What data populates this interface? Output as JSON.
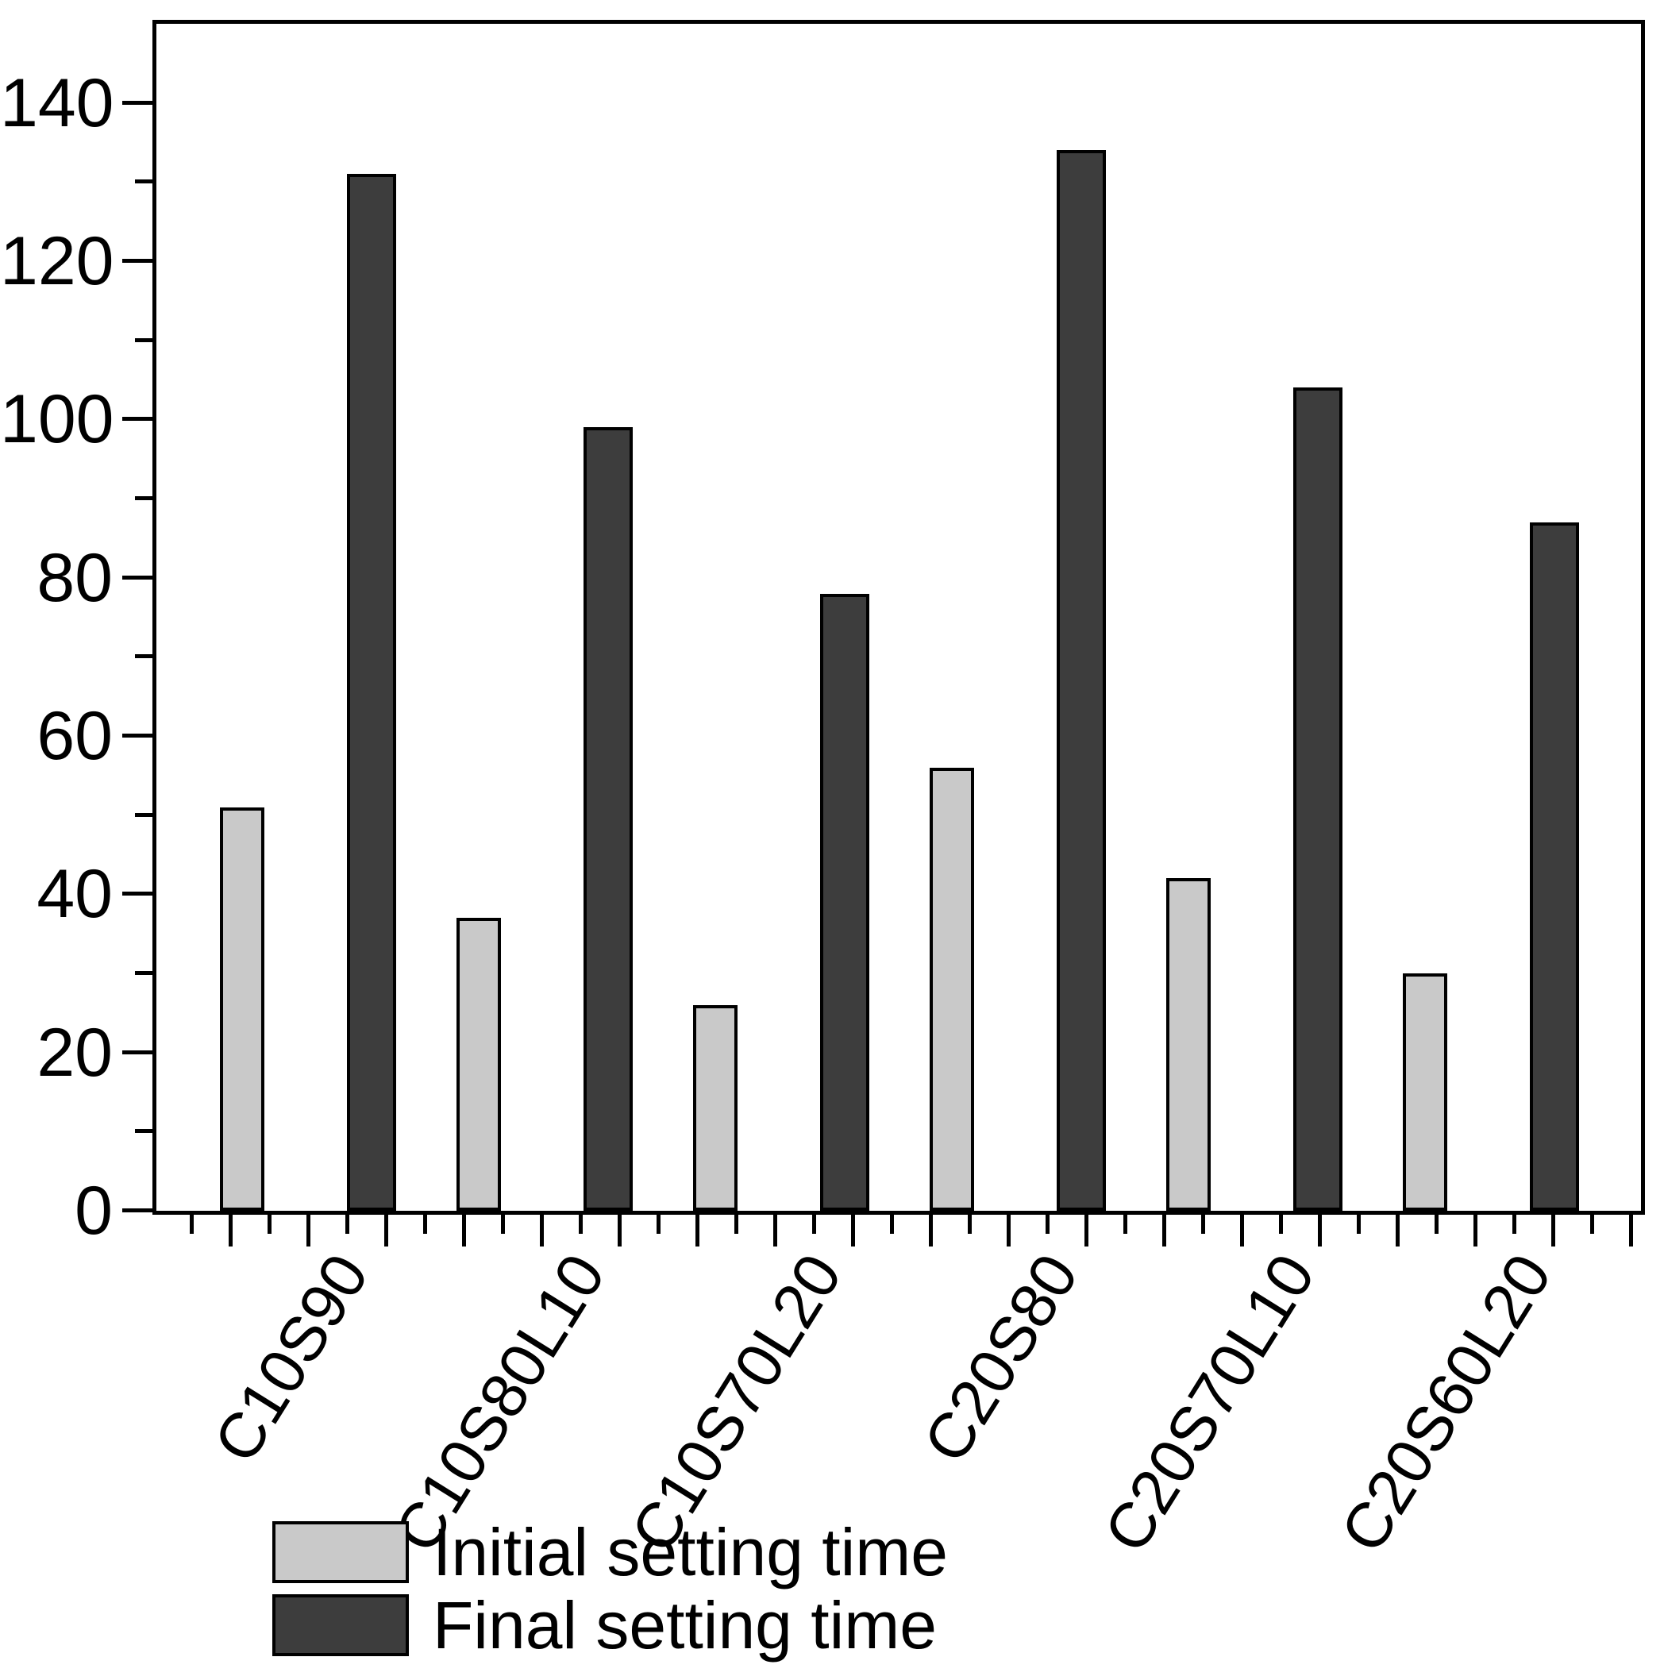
{
  "chart_data": {
    "type": "bar",
    "title": "",
    "xlabel": "",
    "ylabel": "",
    "categories": [
      "C10S90",
      "C10S80L10",
      "C10S70L20",
      "C20S80",
      "C20S70L10",
      "C20S60L20"
    ],
    "series": [
      {
        "name": "Initial setting time",
        "color": "#c9c9c9",
        "values": [
          51,
          37,
          26,
          56,
          42,
          30
        ]
      },
      {
        "name": "Final setting time",
        "color": "#3d3d3d",
        "values": [
          131,
          99,
          78,
          134,
          104,
          87
        ]
      }
    ],
    "ylim": [
      0,
      150
    ],
    "y_major_ticks": [
      0,
      20,
      40,
      60,
      80,
      100,
      120,
      140
    ],
    "y_minor_ticks": [
      10,
      30,
      50,
      70,
      90,
      110,
      130
    ],
    "grid": false,
    "legend_position": "bottom-left",
    "axis_color": "#000000",
    "background_color": "#ffffff"
  }
}
